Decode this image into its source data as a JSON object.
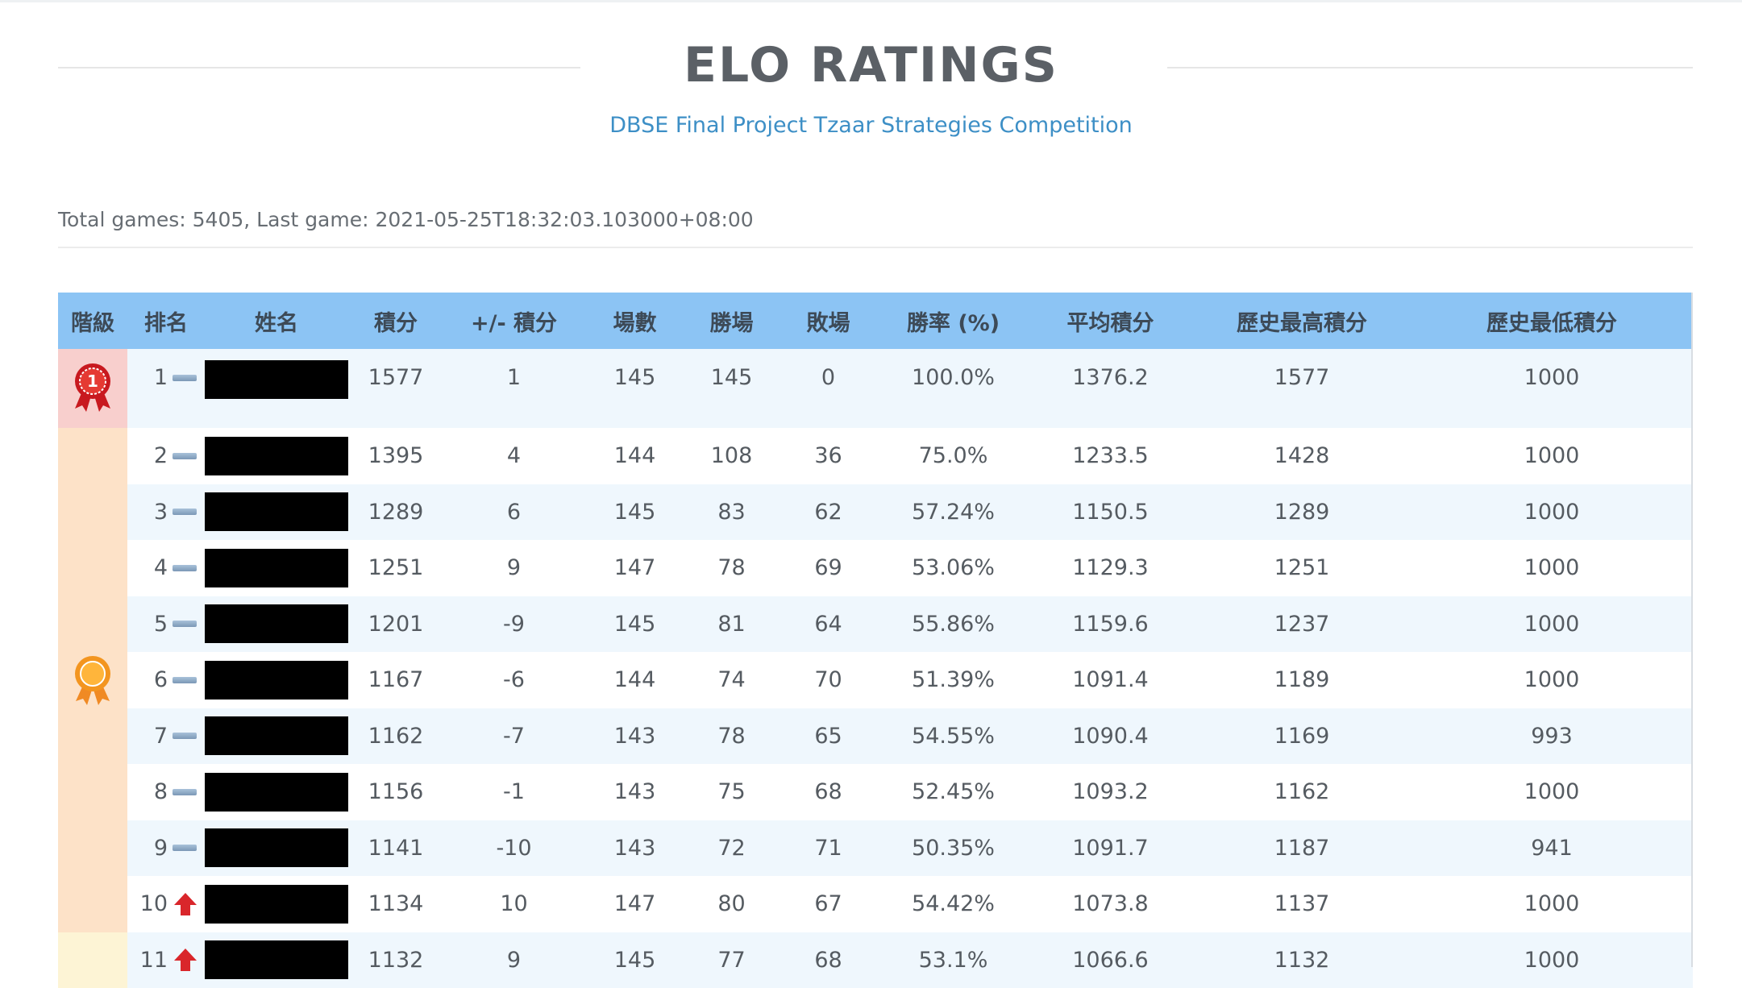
{
  "header": {
    "title": "ELO RATINGS",
    "subtitle": "DBSE Final Project Tzaar Strategies Competition"
  },
  "summary": "Total games: 5405, Last game: 2021-05-25T18:32:03.103000+08:00",
  "table": {
    "columns": {
      "tier": "階級",
      "rank": "排名",
      "name": "姓名",
      "score": "積分",
      "delta": "+/- 積分",
      "games": "場數",
      "wins": "勝場",
      "losses": "敗場",
      "winrate": "勝率 (%)",
      "avg": "平均積分",
      "high": "歷史最高積分",
      "low": "歷史最低積分"
    },
    "tiers": [
      {
        "icon": "first-place-ribbon-icon",
        "color": "#f8cfcd",
        "rows": [
          1
        ]
      },
      {
        "icon": "medal-icon",
        "color": "#fde2c8",
        "rows": [
          2,
          3,
          4,
          5,
          6,
          7,
          8,
          9,
          10
        ]
      },
      {
        "icon": "",
        "color": "#fdf4d5",
        "rows": [
          11
        ]
      }
    ],
    "rows": [
      {
        "rank": "1",
        "trend": "same",
        "name": "",
        "score": "1577",
        "delta": "1",
        "games": "145",
        "wins": "145",
        "losses": "0",
        "winrate": "100.0%",
        "avg": "1376.2",
        "high": "1577",
        "low": "1000"
      },
      {
        "rank": "2",
        "trend": "same",
        "name": "",
        "score": "1395",
        "delta": "4",
        "games": "144",
        "wins": "108",
        "losses": "36",
        "winrate": "75.0%",
        "avg": "1233.5",
        "high": "1428",
        "low": "1000"
      },
      {
        "rank": "3",
        "trend": "same",
        "name": "",
        "score": "1289",
        "delta": "6",
        "games": "145",
        "wins": "83",
        "losses": "62",
        "winrate": "57.24%",
        "avg": "1150.5",
        "high": "1289",
        "low": "1000"
      },
      {
        "rank": "4",
        "trend": "same",
        "name": "",
        "score": "1251",
        "delta": "9",
        "games": "147",
        "wins": "78",
        "losses": "69",
        "winrate": "53.06%",
        "avg": "1129.3",
        "high": "1251",
        "low": "1000"
      },
      {
        "rank": "5",
        "trend": "same",
        "name": "",
        "score": "1201",
        "delta": "-9",
        "games": "145",
        "wins": "81",
        "losses": "64",
        "winrate": "55.86%",
        "avg": "1159.6",
        "high": "1237",
        "low": "1000"
      },
      {
        "rank": "6",
        "trend": "same",
        "name": "",
        "score": "1167",
        "delta": "-6",
        "games": "144",
        "wins": "74",
        "losses": "70",
        "winrate": "51.39%",
        "avg": "1091.4",
        "high": "1189",
        "low": "1000"
      },
      {
        "rank": "7",
        "trend": "same",
        "name": "",
        "score": "1162",
        "delta": "-7",
        "games": "143",
        "wins": "78",
        "losses": "65",
        "winrate": "54.55%",
        "avg": "1090.4",
        "high": "1169",
        "low": "993"
      },
      {
        "rank": "8",
        "trend": "same",
        "name": "",
        "score": "1156",
        "delta": "-1",
        "games": "143",
        "wins": "75",
        "losses": "68",
        "winrate": "52.45%",
        "avg": "1093.2",
        "high": "1162",
        "low": "1000"
      },
      {
        "rank": "9",
        "trend": "same",
        "name": "",
        "score": "1141",
        "delta": "-10",
        "games": "143",
        "wins": "72",
        "losses": "71",
        "winrate": "50.35%",
        "avg": "1091.7",
        "high": "1187",
        "low": "941"
      },
      {
        "rank": "10",
        "trend": "up",
        "name": "",
        "score": "1134",
        "delta": "10",
        "games": "147",
        "wins": "80",
        "losses": "67",
        "winrate": "54.42%",
        "avg": "1073.8",
        "high": "1137",
        "low": "1000"
      },
      {
        "rank": "11",
        "trend": "up",
        "name": "",
        "score": "1132",
        "delta": "9",
        "games": "145",
        "wins": "77",
        "losses": "68",
        "winrate": "53.1%",
        "avg": "1066.6",
        "high": "1132",
        "low": "1000"
      }
    ]
  },
  "colors": {
    "header_bg": "#8cc4f4",
    "title": "#5b6066",
    "subtitle": "#3d8fc6",
    "row_alt": "#eff7fd",
    "trend_up": "#d9262b",
    "trend_same": "#8aa6c2"
  }
}
